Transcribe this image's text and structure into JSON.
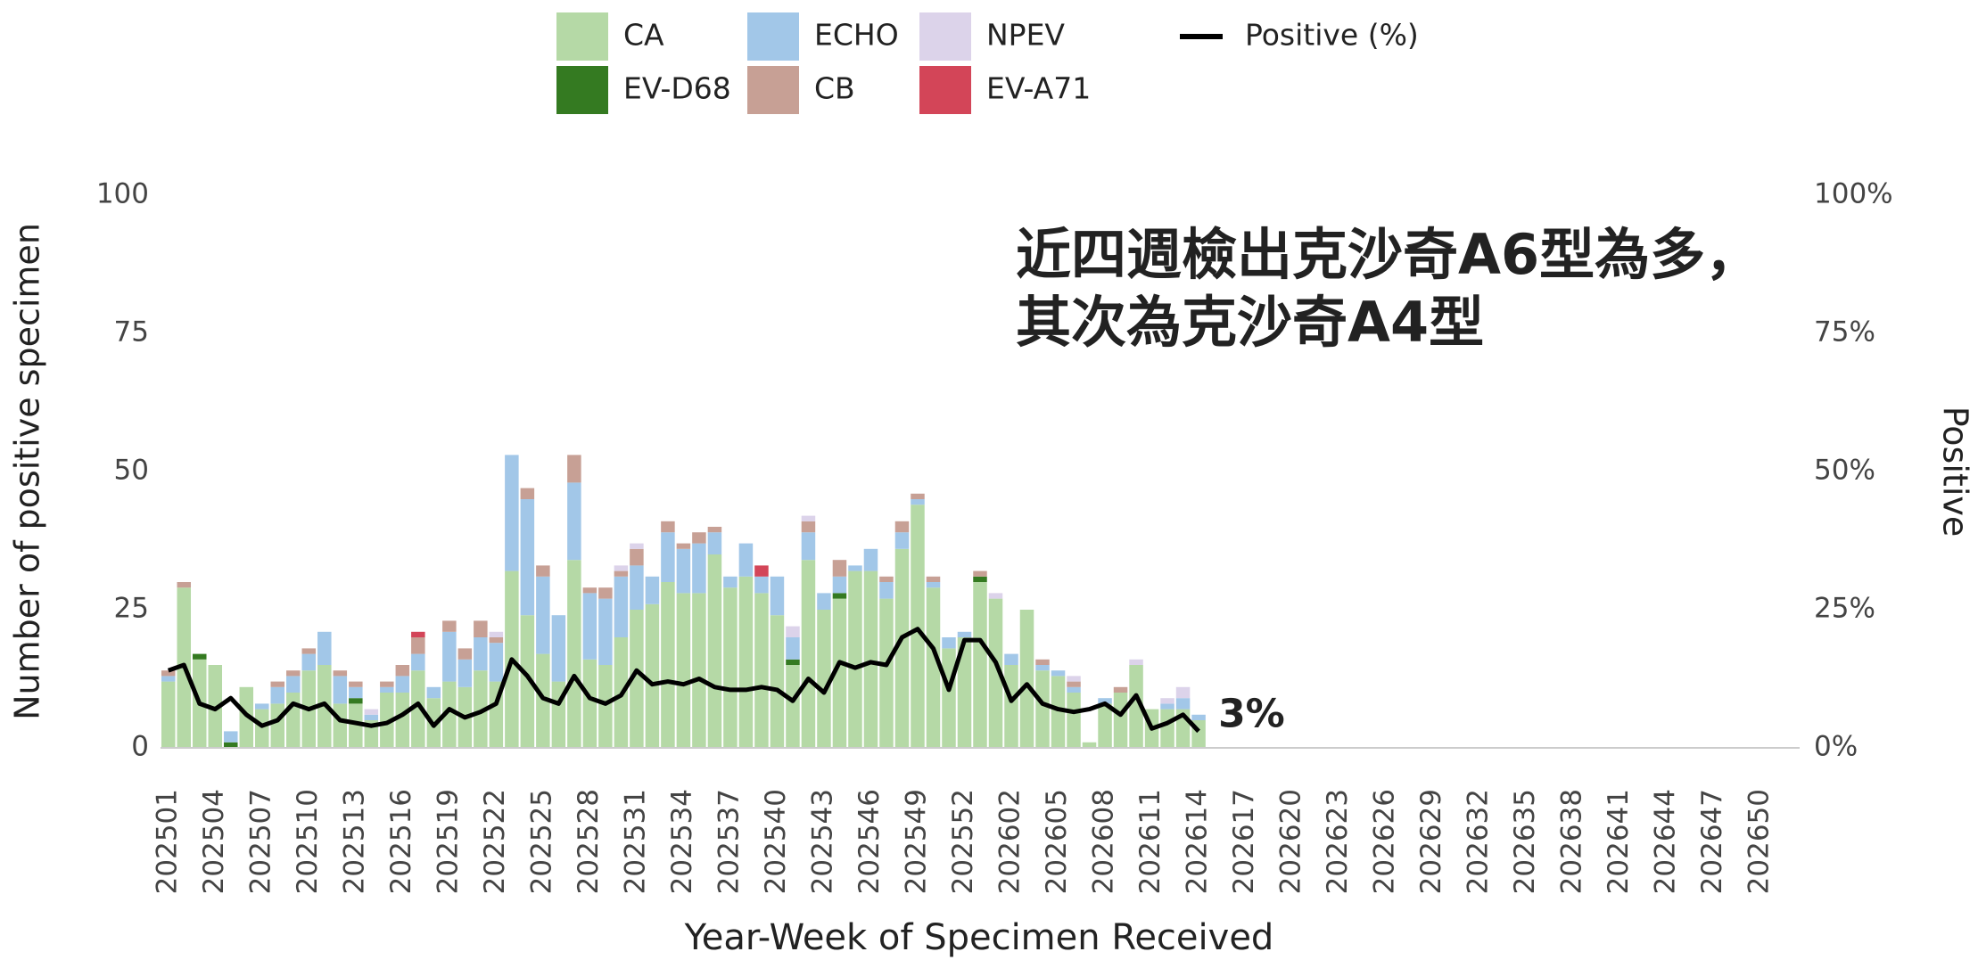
{
  "chart_data": {
    "type": "bar",
    "annotation": [
      "近四週檢出克沙奇A6型為多，",
      "其次為克沙奇A4型"
    ],
    "x_label": "Year-Week of Specimen Received",
    "y_label": "Number of positive specimen",
    "y2_label": "Positive",
    "categories": [
      "202501",
      null,
      null,
      "202504",
      null,
      null,
      "202507",
      null,
      null,
      "202510",
      null,
      null,
      "202513",
      null,
      null,
      "202516",
      null,
      null,
      "202519",
      null,
      null,
      "202522",
      null,
      null,
      "202525",
      null,
      null,
      "202528",
      null,
      null,
      "202531",
      null,
      null,
      "202534",
      null,
      null,
      "202537",
      null,
      null,
      "202540",
      null,
      null,
      "202543",
      null,
      null,
      "202546",
      null,
      null,
      "202549",
      null,
      null,
      "202552",
      null,
      null,
      "202602",
      null,
      null,
      "202605",
      null,
      null,
      "202608",
      null,
      null,
      "202611",
      null,
      null,
      "202614",
      null,
      null,
      "202617",
      null,
      null,
      "202620",
      null,
      null,
      "202623",
      null,
      null,
      "202626",
      null,
      null,
      "202629",
      null,
      null,
      "202632",
      null,
      null,
      "202635",
      null,
      null,
      "202638",
      null,
      null,
      "202641",
      null,
      null,
      "202644",
      null,
      null,
      "202647",
      null,
      null,
      "202650",
      null,
      null
    ],
    "series": [
      {
        "name": "CA",
        "color": "#b5d9a6",
        "values": [
          12,
          29,
          16,
          15,
          0,
          11,
          7,
          8,
          10,
          14,
          15,
          8,
          8,
          5,
          10,
          10,
          14,
          9,
          12,
          11,
          14,
          12,
          32,
          24,
          17,
          12,
          34,
          16,
          15,
          20,
          25,
          26,
          30,
          28,
          28,
          35,
          29,
          31,
          28,
          24,
          15,
          34,
          25,
          27,
          32,
          32,
          27,
          36,
          44,
          29,
          18,
          20,
          30,
          27,
          15,
          25,
          14,
          13,
          10,
          1,
          8,
          10,
          15,
          7,
          7,
          7,
          5,
          null,
          null,
          null,
          null,
          null,
          null,
          null,
          null,
          null,
          null,
          null,
          null,
          null,
          null,
          null,
          null,
          null,
          null,
          null,
          null,
          null,
          null,
          null,
          null,
          null,
          null,
          null,
          null,
          null,
          null,
          null,
          null,
          null,
          null,
          null,
          null,
          null,
          null
        ]
      },
      {
        "name": "EV-D68",
        "color": "#347a21",
        "values": [
          0,
          0,
          1,
          0,
          1,
          0,
          0,
          0,
          0,
          0,
          0,
          0,
          1,
          0,
          0,
          0,
          0,
          0,
          0,
          0,
          0,
          0,
          0,
          0,
          0,
          0,
          0,
          0,
          0,
          0,
          0,
          0,
          0,
          0,
          0,
          0,
          0,
          0,
          0,
          0,
          1,
          0,
          0,
          1,
          0,
          0,
          0,
          0,
          0,
          0,
          0,
          0,
          1,
          0,
          0,
          0,
          0,
          0,
          0,
          0,
          0,
          0,
          0,
          0,
          0,
          0,
          0,
          null,
          null,
          null,
          null,
          null,
          null,
          null,
          null,
          null,
          null,
          null,
          null,
          null,
          null,
          null,
          null,
          null,
          null,
          null,
          null,
          null,
          null,
          null,
          null,
          null,
          null,
          null,
          null,
          null,
          null,
          null,
          null,
          null,
          null,
          null,
          null,
          null,
          null
        ]
      },
      {
        "name": "ECHO",
        "color": "#a2c7e8",
        "values": [
          1,
          0,
          0,
          0,
          2,
          0,
          1,
          3,
          3,
          3,
          6,
          5,
          2,
          1,
          1,
          3,
          3,
          2,
          9,
          5,
          6,
          7,
          21,
          21,
          14,
          12,
          14,
          12,
          12,
          11,
          8,
          5,
          9,
          8,
          9,
          4,
          2,
          6,
          3,
          7,
          4,
          5,
          3,
          3,
          1,
          4,
          3,
          3,
          1,
          1,
          2,
          1,
          0,
          0,
          2,
          0,
          1,
          1,
          1,
          0,
          1,
          0,
          0,
          0,
          1,
          2,
          1,
          null,
          null,
          null,
          null,
          null,
          null,
          null,
          null,
          null,
          null,
          null,
          null,
          null,
          null,
          null,
          null,
          null,
          null,
          null,
          null,
          null,
          null,
          null,
          null,
          null,
          null,
          null,
          null,
          null,
          null,
          null,
          null,
          null,
          null,
          null,
          null,
          null,
          null
        ]
      },
      {
        "name": "CB",
        "color": "#c7a095",
        "values": [
          1,
          1,
          0,
          0,
          0,
          0,
          0,
          1,
          1,
          1,
          0,
          1,
          1,
          0,
          1,
          2,
          3,
          0,
          2,
          2,
          3,
          1,
          0,
          2,
          2,
          0,
          5,
          1,
          2,
          1,
          3,
          0,
          2,
          1,
          2,
          1,
          0,
          0,
          0,
          0,
          0,
          2,
          0,
          3,
          0,
          0,
          1,
          2,
          1,
          1,
          0,
          0,
          1,
          0,
          0,
          0,
          1,
          0,
          1,
          0,
          0,
          1,
          0,
          0,
          0,
          0,
          0,
          null,
          null,
          null,
          null,
          null,
          null,
          null,
          null,
          null,
          null,
          null,
          null,
          null,
          null,
          null,
          null,
          null,
          null,
          null,
          null,
          null,
          null,
          null,
          null,
          null,
          null,
          null,
          null,
          null,
          null,
          null,
          null,
          null,
          null,
          null,
          null,
          null,
          null
        ]
      },
      {
        "name": "NPEV",
        "color": "#dcd3ea",
        "values": [
          0,
          0,
          0,
          0,
          0,
          0,
          0,
          0,
          0,
          0,
          0,
          0,
          0,
          1,
          0,
          0,
          0,
          0,
          0,
          0,
          0,
          1,
          0,
          0,
          0,
          0,
          0,
          0,
          0,
          1,
          1,
          0,
          0,
          0,
          0,
          0,
          0,
          0,
          0,
          0,
          2,
          1,
          0,
          0,
          0,
          0,
          0,
          0,
          0,
          0,
          0,
          0,
          0,
          1,
          0,
          0,
          0,
          0,
          1,
          0,
          0,
          0,
          1,
          0,
          1,
          2,
          0,
          null,
          null,
          null,
          null,
          null,
          null,
          null,
          null,
          null,
          null,
          null,
          null,
          null,
          null,
          null,
          null,
          null,
          null,
          null,
          null,
          null,
          null,
          null,
          null,
          null,
          null,
          null,
          null,
          null,
          null,
          null,
          null,
          null,
          null,
          null,
          null,
          null,
          null
        ]
      },
      {
        "name": "EV-A71",
        "color": "#d34558",
        "values": [
          0,
          0,
          0,
          0,
          0,
          0,
          0,
          0,
          0,
          0,
          0,
          0,
          0,
          0,
          0,
          0,
          1,
          0,
          0,
          0,
          0,
          0,
          0,
          0,
          0,
          0,
          0,
          0,
          0,
          0,
          0,
          0,
          0,
          0,
          0,
          0,
          0,
          0,
          2,
          0,
          0,
          0,
          0,
          0,
          0,
          0,
          0,
          0,
          0,
          0,
          0,
          0,
          0,
          0,
          0,
          0,
          0,
          0,
          0,
          0,
          0,
          0,
          0,
          0,
          0,
          0,
          0,
          null,
          null,
          null,
          null,
          null,
          null,
          null,
          null,
          null,
          null,
          null,
          null,
          null,
          null,
          null,
          null,
          null,
          null,
          null,
          null,
          null,
          null,
          null,
          null,
          null,
          null,
          null,
          null,
          null,
          null,
          null,
          null,
          null,
          null,
          null,
          null,
          null,
          null
        ]
      },
      {
        "name": "Positive (%)",
        "type": "line",
        "axis": "y2",
        "color": "#000000",
        "values": [
          14,
          15,
          8,
          7,
          9,
          6,
          4,
          5,
          8,
          7,
          8,
          5,
          4.5,
          4,
          4.5,
          6,
          8,
          4,
          7,
          5.5,
          6.5,
          8,
          16,
          13,
          9,
          8,
          13,
          9,
          8,
          9.5,
          14,
          11.5,
          12,
          11.5,
          12.5,
          11,
          10.5,
          10.5,
          11,
          10.5,
          8.5,
          12.5,
          10,
          15.5,
          14.5,
          15.5,
          15,
          20,
          21.5,
          18,
          10.5,
          19.5,
          19.5,
          15.5,
          8.5,
          11.5,
          8,
          7,
          6.5,
          7,
          8,
          6,
          9.5,
          3.5,
          4.5,
          6,
          3,
          null,
          null,
          null,
          null,
          null,
          null,
          null,
          null,
          null,
          null,
          null,
          null,
          null,
          null,
          null,
          null,
          null,
          null,
          null,
          null,
          null,
          null,
          null,
          null,
          null,
          null,
          null,
          null,
          null,
          null,
          null,
          null,
          null,
          null,
          null,
          null,
          null,
          null
        ],
        "value_labels": [
          null,
          null,
          null,
          null,
          null,
          null,
          null,
          null,
          null,
          null,
          null,
          null,
          null,
          null,
          null,
          null,
          null,
          null,
          null,
          null,
          null,
          null,
          null,
          null,
          null,
          null,
          null,
          null,
          null,
          null,
          null,
          null,
          null,
          null,
          null,
          null,
          null,
          null,
          null,
          null,
          null,
          null,
          null,
          null,
          null,
          null,
          null,
          null,
          null,
          null,
          null,
          null,
          null,
          null,
          null,
          null,
          null,
          null,
          null,
          null,
          null,
          null,
          null,
          null,
          null,
          null,
          "3%",
          null,
          null,
          null,
          null,
          null,
          null,
          null,
          null,
          null,
          null,
          null,
          null,
          null,
          null,
          null,
          null,
          null,
          null,
          null,
          null,
          null,
          null,
          null,
          null,
          null,
          null,
          null,
          null,
          null,
          null,
          null,
          null,
          null,
          null,
          null,
          null,
          null,
          null
        ]
      }
    ],
    "ylim": [
      0,
      100
    ],
    "yticks": [
      0,
      25,
      50,
      75,
      100
    ],
    "y2lim": [
      0,
      100
    ],
    "y2ticks": [
      {
        "value": 0,
        "label": "0%"
      },
      {
        "value": 25,
        "label": "25%"
      },
      {
        "value": 50,
        "label": "50%"
      },
      {
        "value": 75,
        "label": "75%"
      },
      {
        "value": 100,
        "label": "100%"
      }
    ],
    "grid": false
  }
}
